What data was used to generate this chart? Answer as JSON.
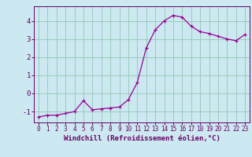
{
  "x": [
    0,
    1,
    2,
    3,
    4,
    5,
    6,
    7,
    8,
    9,
    10,
    11,
    12,
    13,
    14,
    15,
    16,
    17,
    18,
    19,
    20,
    21,
    22,
    23
  ],
  "y": [
    -1.3,
    -1.2,
    -1.2,
    -1.1,
    -1.0,
    -0.4,
    -0.9,
    -0.85,
    -0.8,
    -0.75,
    -0.35,
    0.6,
    2.5,
    3.5,
    4.0,
    4.3,
    4.2,
    3.7,
    3.4,
    3.3,
    3.15,
    3.0,
    2.9,
    3.25
  ],
  "line_color": "#990099",
  "marker": "+",
  "marker_color": "#990099",
  "bg_color": "#cce8f0",
  "grid_color": "#99ccbb",
  "xlabel": "Windchill (Refroidissement éolien,°C)",
  "ylim": [
    -1.6,
    4.8
  ],
  "yticks": [
    -1,
    0,
    1,
    2,
    3,
    4
  ],
  "axis_color": "#660066",
  "tick_color": "#660066",
  "label_fontsize": 6.5,
  "xtick_fontsize": 5.5,
  "ytick_fontsize": 6.5
}
